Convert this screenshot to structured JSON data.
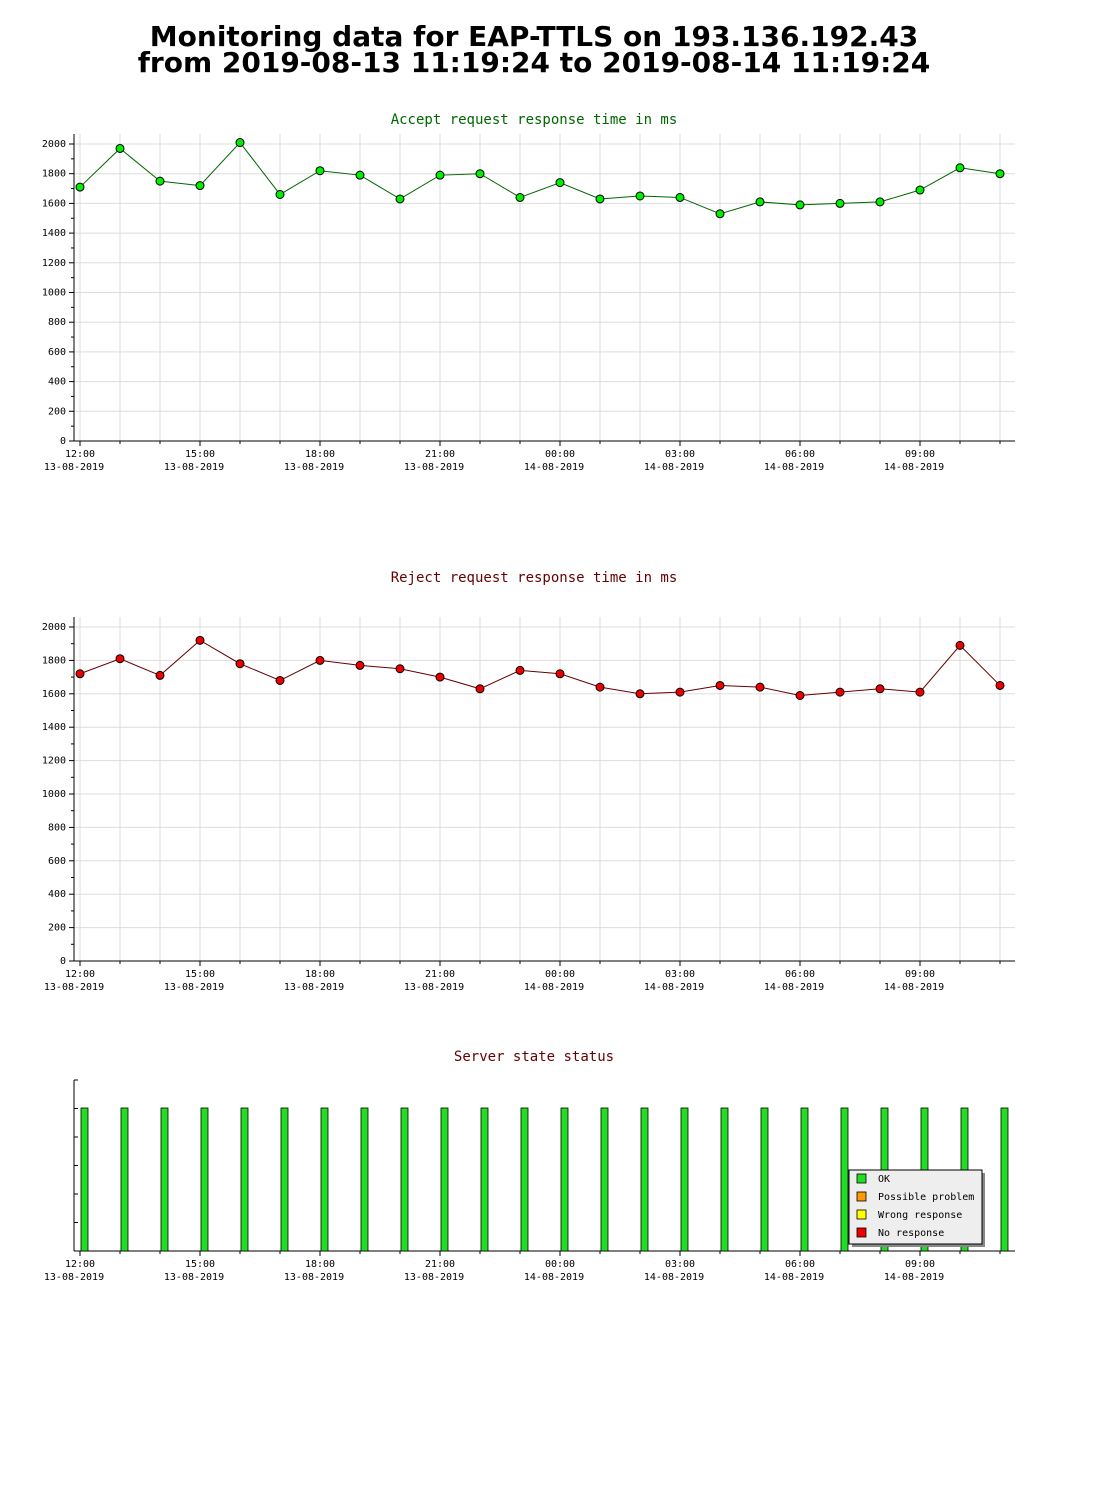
{
  "header": {
    "line1": "Monitoring data for EAP-TTLS on 193.136.192.43",
    "line2": "from 2019-08-13 11:19:24 to 2019-08-14 11:19:24"
  },
  "x_axis": {
    "tick_labels": [
      {
        "time": "12:00",
        "date": "13-08-2019"
      },
      {
        "time": "15:00",
        "date": "13-08-2019"
      },
      {
        "time": "18:00",
        "date": "13-08-2019"
      },
      {
        "time": "21:00",
        "date": "13-08-2019"
      },
      {
        "time": "00:00",
        "date": "14-08-2019"
      },
      {
        "time": "03:00",
        "date": "14-08-2019"
      },
      {
        "time": "06:00",
        "date": "14-08-2019"
      },
      {
        "time": "09:00",
        "date": "14-08-2019"
      }
    ]
  },
  "colors": {
    "accept_marker": "#00ee00",
    "accept_line": "#006600",
    "accept_title": "#006600",
    "reject_marker": "#ee0000",
    "reject_line": "#660000",
    "reject_title": "#660000",
    "status_title": "#660000",
    "status_ok": "#22dd22",
    "legend_possible": "#ff9900",
    "legend_wrong": "#ffff00",
    "legend_none": "#ee0000",
    "grid": "#dddddd"
  },
  "chart_data": [
    {
      "type": "line",
      "title": "Accept request response time in ms",
      "xlabel": "",
      "ylabel": "",
      "ylim": [
        0,
        2000
      ],
      "yticks": [
        0,
        200,
        400,
        600,
        800,
        1000,
        1200,
        1400,
        1600,
        1800,
        2000
      ],
      "grid": true,
      "x": [
        "2019-08-13 12:00",
        "2019-08-13 13:00",
        "2019-08-13 14:00",
        "2019-08-13 15:00",
        "2019-08-13 16:00",
        "2019-08-13 17:00",
        "2019-08-13 18:00",
        "2019-08-13 19:00",
        "2019-08-13 20:00",
        "2019-08-13 21:00",
        "2019-08-13 22:00",
        "2019-08-13 23:00",
        "2019-08-14 00:00",
        "2019-08-14 01:00",
        "2019-08-14 02:00",
        "2019-08-14 03:00",
        "2019-08-14 04:00",
        "2019-08-14 05:00",
        "2019-08-14 06:00",
        "2019-08-14 07:00",
        "2019-08-14 08:00",
        "2019-08-14 09:00",
        "2019-08-14 10:00",
        "2019-08-14 11:00"
      ],
      "values": [
        1710,
        1970,
        1750,
        1720,
        2010,
        1660,
        1820,
        1790,
        1630,
        1790,
        1800,
        1640,
        1740,
        1630,
        1650,
        1640,
        1530,
        1610,
        1590,
        1600,
        1610,
        1690,
        1840,
        1800
      ]
    },
    {
      "type": "line",
      "title": "Reject request response time in ms",
      "xlabel": "",
      "ylabel": "",
      "ylim": [
        0,
        2000
      ],
      "yticks": [
        0,
        200,
        400,
        600,
        800,
        1000,
        1200,
        1400,
        1600,
        1800,
        2000
      ],
      "grid": true,
      "x": [
        "2019-08-13 12:00",
        "2019-08-13 13:00",
        "2019-08-13 14:00",
        "2019-08-13 15:00",
        "2019-08-13 16:00",
        "2019-08-13 17:00",
        "2019-08-13 18:00",
        "2019-08-13 19:00",
        "2019-08-13 20:00",
        "2019-08-13 21:00",
        "2019-08-13 22:00",
        "2019-08-13 23:00",
        "2019-08-14 00:00",
        "2019-08-14 01:00",
        "2019-08-14 02:00",
        "2019-08-14 03:00",
        "2019-08-14 04:00",
        "2019-08-14 05:00",
        "2019-08-14 06:00",
        "2019-08-14 07:00",
        "2019-08-14 08:00",
        "2019-08-14 09:00",
        "2019-08-14 10:00",
        "2019-08-14 11:00"
      ],
      "values": [
        1720,
        1810,
        1710,
        1920,
        1780,
        1680,
        1800,
        1770,
        1750,
        1700,
        1630,
        1740,
        1720,
        1640,
        1600,
        1610,
        1650,
        1640,
        1590,
        1610,
        1630,
        1610,
        1890,
        1650
      ]
    },
    {
      "type": "bar",
      "title": "Server state status",
      "legend": [
        "OK",
        "Possible problem",
        "Wrong response",
        "No response"
      ],
      "legend_position": "bottom-right",
      "x": [
        "2019-08-13 12:00",
        "2019-08-13 13:00",
        "2019-08-13 14:00",
        "2019-08-13 15:00",
        "2019-08-13 16:00",
        "2019-08-13 17:00",
        "2019-08-13 18:00",
        "2019-08-13 19:00",
        "2019-08-13 20:00",
        "2019-08-13 21:00",
        "2019-08-13 22:00",
        "2019-08-13 23:00",
        "2019-08-14 00:00",
        "2019-08-14 01:00",
        "2019-08-14 02:00",
        "2019-08-14 03:00",
        "2019-08-14 04:00",
        "2019-08-14 05:00",
        "2019-08-14 06:00",
        "2019-08-14 07:00",
        "2019-08-14 08:00",
        "2019-08-14 09:00",
        "2019-08-14 10:00",
        "2019-08-14 11:00"
      ],
      "status": [
        "OK",
        "OK",
        "OK",
        "OK",
        "OK",
        "OK",
        "OK",
        "OK",
        "OK",
        "OK",
        "OK",
        "OK",
        "OK",
        "OK",
        "OK",
        "OK",
        "OK",
        "OK",
        "OK",
        "OK",
        "OK",
        "OK",
        "OK",
        "OK"
      ]
    }
  ]
}
